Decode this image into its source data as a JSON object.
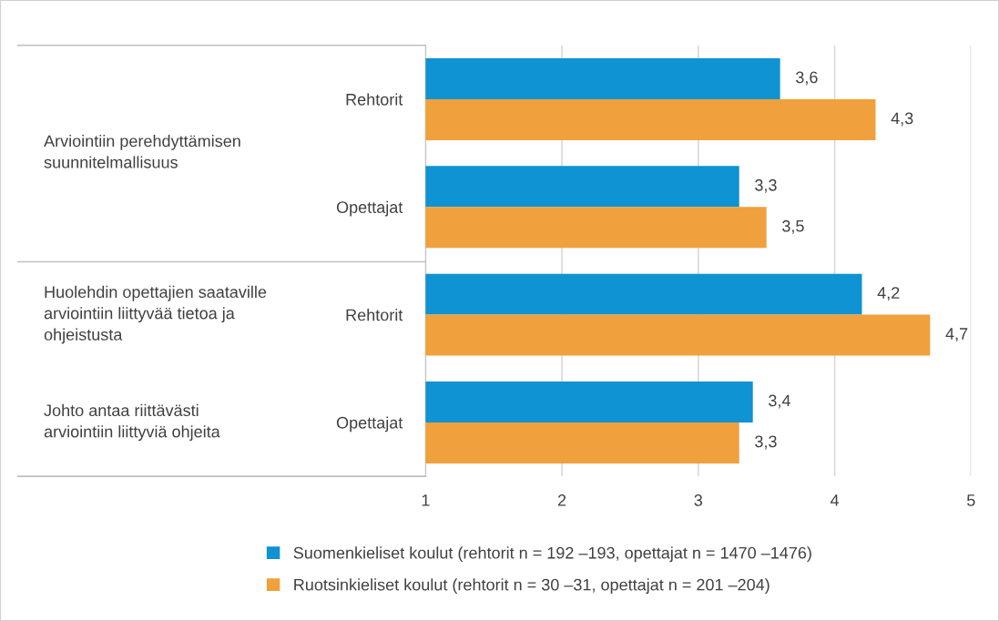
{
  "chart_data": {
    "type": "bar",
    "orientation": "horizontal",
    "categories": [
      "Rehtorit",
      "Opettajat",
      "Rehtorit",
      "Opettajat"
    ],
    "series": [
      {
        "name": "Suomenkieliset koulut (rehtorit n = 192 –193, opettajat n = 1470 –1476)",
        "color": "#0f93d2",
        "values": [
          3.6,
          3.3,
          4.2,
          3.4
        ],
        "value_labels": [
          "3,6",
          "3,3",
          "4,2",
          "3,4"
        ]
      },
      {
        "name": "Ruotsinkieliset koulut (rehtorit n = 30 –31, opettajat n = 201 –204)",
        "color": "#f0a03c",
        "values": [
          4.3,
          3.5,
          4.7,
          3.3
        ],
        "value_labels": [
          "4,3",
          "3,5",
          "4,7",
          "3,3"
        ]
      }
    ],
    "xlim": [
      1,
      5
    ],
    "xticks": [
      1,
      2,
      3,
      4,
      5
    ],
    "grid": "x",
    "legend": "bottom",
    "annotations": [
      "Arviointiin perehdyttämisen\nsuunnitelmallisuus",
      "Huolehdin opettajien saataville\narviointiin liittyvää tietoa ja\nohjeistusta",
      "Johto antaa riittävästi\narviointiin liittyviä ohjeita"
    ]
  }
}
